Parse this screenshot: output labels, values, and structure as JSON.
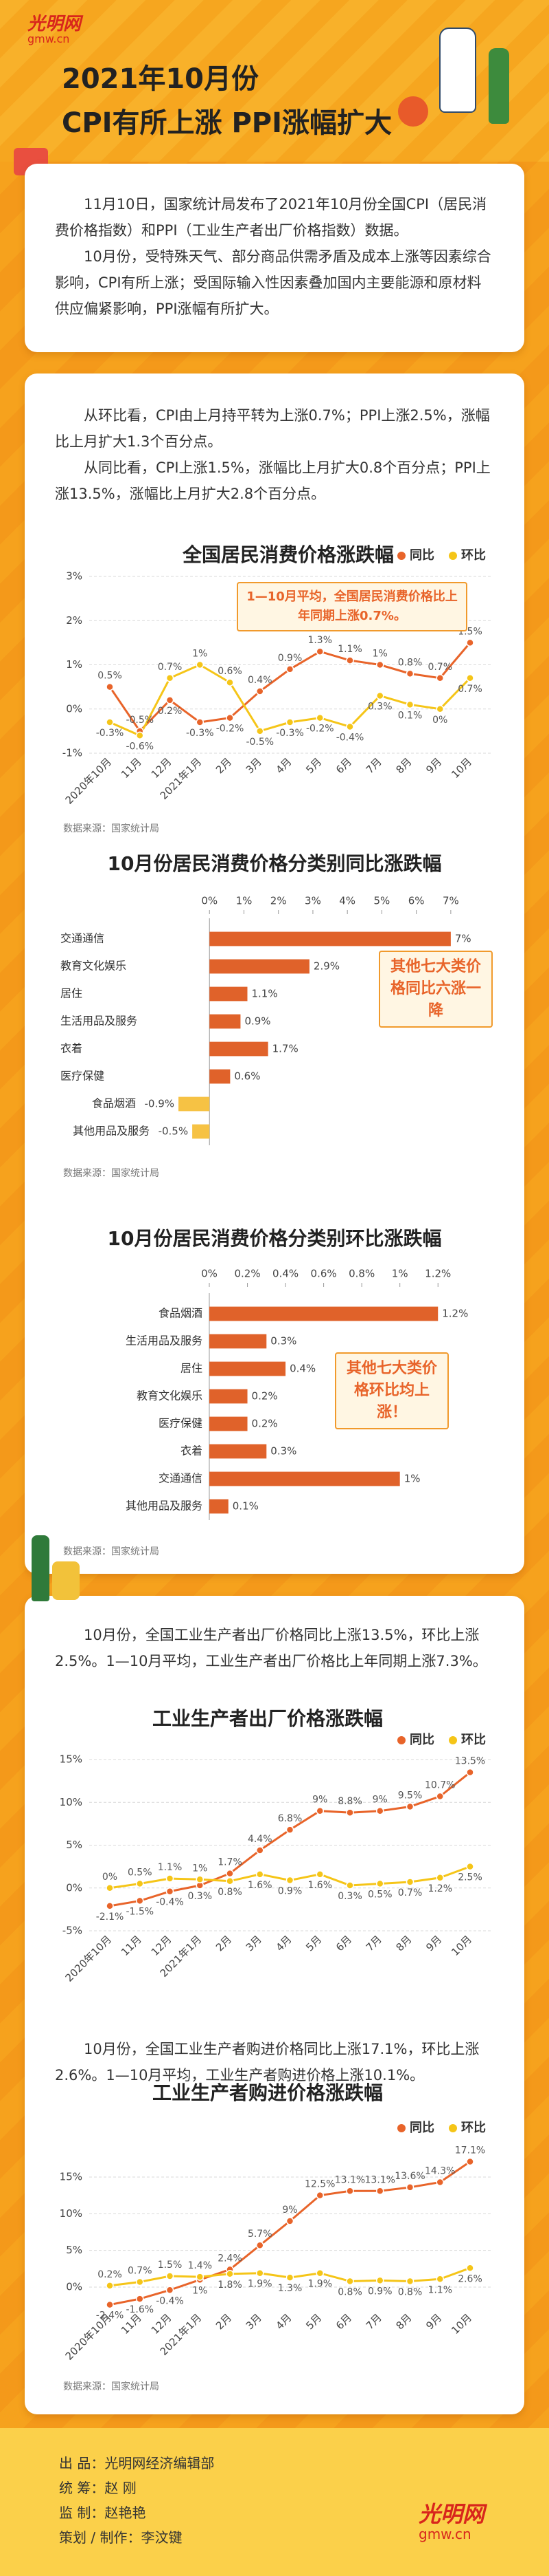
{
  "logo": {
    "name": "光明网",
    "domain": "gmw.cn"
  },
  "header": {
    "title": "2021年10月份",
    "subtitle": "CPI有所上涨 PPI涨幅扩大"
  },
  "intro": [
    "11月10日，国家统计局发布了2021年10月份全国CPI（居民消费价格指数）和PPI（工业生产者出厂价格指数）数据。",
    "10月份，受特殊天气、部分商品供需矛盾及成本上涨等因素综合影响，CPI有所上涨；受国际输入性因素叠加国内主要能源和原材料供应偏紧影响，PPI涨幅有所扩大。"
  ],
  "section_cpi": [
    "从环比看，CPI由上月持平转为上涨0.7%；PPI上涨2.5%，涨幅比上月扩大1.3个百分点。",
    "从同比看，CPI上涨1.5%，涨幅比上月扩大0.8个百分点；PPI上涨13.5%，涨幅比上月扩大2.8个百分点。"
  ],
  "section_ppi": [
    "10月份，全国工业生产者出厂价格同比上涨13.5%，环比上涨2.5%。1—10月平均，工业生产者出厂价格比上年同期上涨7.3%。"
  ],
  "section_ppirm": [
    "10月份，全国工业生产者购进价格同比上涨17.1%，环比上涨2.6%。1—10月平均，工业生产者购进价格上涨10.1%。"
  ],
  "credits": [
    "出 品：光明网经济编辑部",
    "统 筹：赵 刚",
    "监 制：赵艳艳",
    "策划 / 制作：李汶键"
  ],
  "chart_data": [
    {
      "type": "line",
      "title": "全国居民消费价格涨跌幅",
      "annotation": "1—10月平均，全国居民消费价格比上年同期上涨0.7%。",
      "source": "数据来源：国家统计局",
      "categories": [
        "2020年10月",
        "11月",
        "12月",
        "2021年1月",
        "2月",
        "3月",
        "4月",
        "5月",
        "6月",
        "7月",
        "8月",
        "9月",
        "10月"
      ],
      "series": [
        {
          "name": "同比",
          "color": "#e8642a",
          "values": [
            0.5,
            -0.5,
            0.2,
            -0.3,
            -0.2,
            0.4,
            0.9,
            1.3,
            1.1,
            1,
            0.8,
            0.7,
            1.5
          ],
          "value_labels": [
            "0.5%",
            "-0.5%",
            "0.2%",
            "-0.3%",
            "-0.2%",
            "0.4%",
            "0.9%",
            "1.3%",
            "1.1%",
            "1%",
            "0.8%",
            "0.7%",
            "1.5%"
          ]
        },
        {
          "name": "环比",
          "color": "#f5c518",
          "values": [
            -0.3,
            -0.6,
            0.7,
            1,
            0.6,
            -0.5,
            -0.3,
            -0.2,
            -0.4,
            0.3,
            0.1,
            0,
            0.7
          ],
          "value_labels": [
            "-0.3%",
            "-0.6%",
            "0.7%",
            "1%",
            "0.6%",
            "-0.5%",
            "-0.3%",
            "-0.2%",
            "-0.4%",
            "0.3%",
            "0.1%",
            "0%",
            "0.7%"
          ]
        }
      ],
      "ylim": [
        -1,
        3
      ],
      "yticks": [
        {
          "value": 3,
          "label": "3%"
        },
        {
          "value": 2,
          "label": "2%"
        },
        {
          "value": 1,
          "label": "1%"
        },
        {
          "value": 0,
          "label": "0%"
        },
        {
          "value": -1,
          "label": "-1%"
        }
      ],
      "grid": true,
      "legend": "top-right"
    },
    {
      "type": "bar",
      "horizontal": true,
      "title": "10月份居民消费价格分类别同比涨跌幅",
      "annotation": "其他七大类价格同比六涨一降",
      "source": "数据来源：国家统计局",
      "categories": [
        "交通通信",
        "教育文化娱乐",
        "居住",
        "生活用品及服务",
        "衣着",
        "医疗保健",
        "食品烟酒",
        "其他用品及服务"
      ],
      "values": [
        7,
        2.9,
        1.1,
        0.9,
        1.7,
        0.6,
        -0.9,
        -0.5
      ],
      "value_labels": [
        "7%",
        "2.9%",
        "1.1%",
        "0.9%",
        "1.7%",
        "0.6%",
        "-0.9%",
        "-0.5%"
      ],
      "color": "#e0622a",
      "negative_color": "#f6c244",
      "xlim": [
        -1,
        7.5
      ],
      "xticks": [
        {
          "value": 0,
          "label": "0%"
        },
        {
          "value": 1,
          "label": "1%"
        },
        {
          "value": 2,
          "label": "2%"
        },
        {
          "value": 3,
          "label": "3%"
        },
        {
          "value": 4,
          "label": "4%"
        },
        {
          "value": 5,
          "label": "5%"
        },
        {
          "value": 6,
          "label": "6%"
        },
        {
          "value": 7,
          "label": "7%"
        }
      ],
      "grid": false
    },
    {
      "type": "bar",
      "horizontal": true,
      "title": "10月份居民消费价格分类别环比涨跌幅",
      "annotation": "其他七大类价格环比均上涨！",
      "source": "数据来源：国家统计局",
      "categories": [
        "食品烟酒",
        "生活用品及服务",
        "居住",
        "教育文化娱乐",
        "医疗保健",
        "衣着",
        "交通通信",
        "其他用品及服务"
      ],
      "values": [
        1.2,
        0.3,
        0.4,
        0.2,
        0.2,
        0.3,
        1,
        0.1
      ],
      "value_labels": [
        "1.2%",
        "0.3%",
        "0.4%",
        "0.2%",
        "0.2%",
        "0.3%",
        "1%",
        "0.1%"
      ],
      "color": "#e0622a",
      "negative_color": "#f6c244",
      "xlim": [
        0,
        1.3
      ],
      "xticks": [
        {
          "value": 0,
          "label": "0%"
        },
        {
          "value": 0.2,
          "label": "0.2%"
        },
        {
          "value": 0.4,
          "label": "0.4%"
        },
        {
          "value": 0.6,
          "label": "0.6%"
        },
        {
          "value": 0.8,
          "label": "0.8%"
        },
        {
          "value": 1,
          "label": "1%"
        },
        {
          "value": 1.2,
          "label": "1.2%"
        }
      ],
      "grid": false
    },
    {
      "type": "line",
      "title": "工业生产者出厂价格涨跌幅",
      "categories": [
        "2020年10月",
        "11月",
        "12月",
        "2021年1月",
        "2月",
        "3月",
        "4月",
        "5月",
        "6月",
        "7月",
        "8月",
        "9月",
        "10月"
      ],
      "series": [
        {
          "name": "同比",
          "color": "#e8642a",
          "values": [
            -2.1,
            -1.5,
            -0.4,
            0.3,
            1.7,
            4.4,
            6.8,
            9,
            8.8,
            9,
            9.5,
            10.7,
            13.5
          ],
          "value_labels": [
            "-2.1%",
            "-1.5%",
            "-0.4%",
            "0.3%",
            "1.7%",
            "4.4%",
            "6.8%",
            "9%",
            "8.8%",
            "9%",
            "9.5%",
            "10.7%",
            "13.5%"
          ]
        },
        {
          "name": "环比",
          "color": "#f5c518",
          "values": [
            0,
            0.5,
            1.1,
            1,
            0.8,
            1.6,
            0.9,
            1.6,
            0.3,
            0.5,
            0.7,
            1.2,
            2.5
          ],
          "value_labels": [
            "0%",
            "0.5%",
            "1.1%",
            "1%",
            "0.8%",
            "1.6%",
            "0.9%",
            "1.6%",
            "0.3%",
            "0.5%",
            "0.7%",
            "1.2%",
            "2.5%"
          ]
        }
      ],
      "ylim": [
        -5,
        15
      ],
      "yticks": [
        {
          "value": 15,
          "label": "15%"
        },
        {
          "value": 10,
          "label": "10%"
        },
        {
          "value": 5,
          "label": "5%"
        },
        {
          "value": 0,
          "label": "0%"
        },
        {
          "value": -5,
          "label": "-5%"
        }
      ],
      "grid": true,
      "legend": "top-right"
    },
    {
      "type": "line",
      "title": "工业生产者购进价格涨跌幅",
      "source": "数据来源：国家统计局",
      "categories": [
        "2020年10月",
        "11月",
        "12月",
        "2021年1月",
        "2月",
        "3月",
        "4月",
        "5月",
        "6月",
        "7月",
        "8月",
        "9月",
        "10月"
      ],
      "series": [
        {
          "name": "同比",
          "color": "#e8642a",
          "values": [
            -2.4,
            -1.6,
            -0.4,
            1,
            2.4,
            5.7,
            9,
            12.5,
            13.1,
            13.1,
            13.6,
            14.3,
            17.1
          ],
          "value_labels": [
            "-2.4%",
            "-1.6%",
            "-0.4%",
            "1%",
            "2.4%",
            "5.7%",
            "9%",
            "12.5%",
            "13.1%",
            "13.1%",
            "13.6%",
            "14.3%",
            "17.1%"
          ]
        },
        {
          "name": "环比",
          "color": "#f5c518",
          "values": [
            0.2,
            0.7,
            1.5,
            1.4,
            1.8,
            1.9,
            1.3,
            1.9,
            0.8,
            0.9,
            0.8,
            1.1,
            2.6
          ],
          "value_labels": [
            "0.2%",
            "0.7%",
            "1.5%",
            "1.4%",
            "1.8%",
            "1.9%",
            "1.3%",
            "1.9%",
            "0.8%",
            "0.9%",
            "0.8%",
            "1.1%",
            "2.6%"
          ]
        }
      ],
      "ylim": [
        -3,
        18
      ],
      "yticks": [
        {
          "value": 15,
          "label": "15%"
        },
        {
          "value": 10,
          "label": "10%"
        },
        {
          "value": 5,
          "label": "5%"
        },
        {
          "value": 0,
          "label": "0%"
        }
      ],
      "grid": true,
      "legend": "top-right"
    }
  ]
}
